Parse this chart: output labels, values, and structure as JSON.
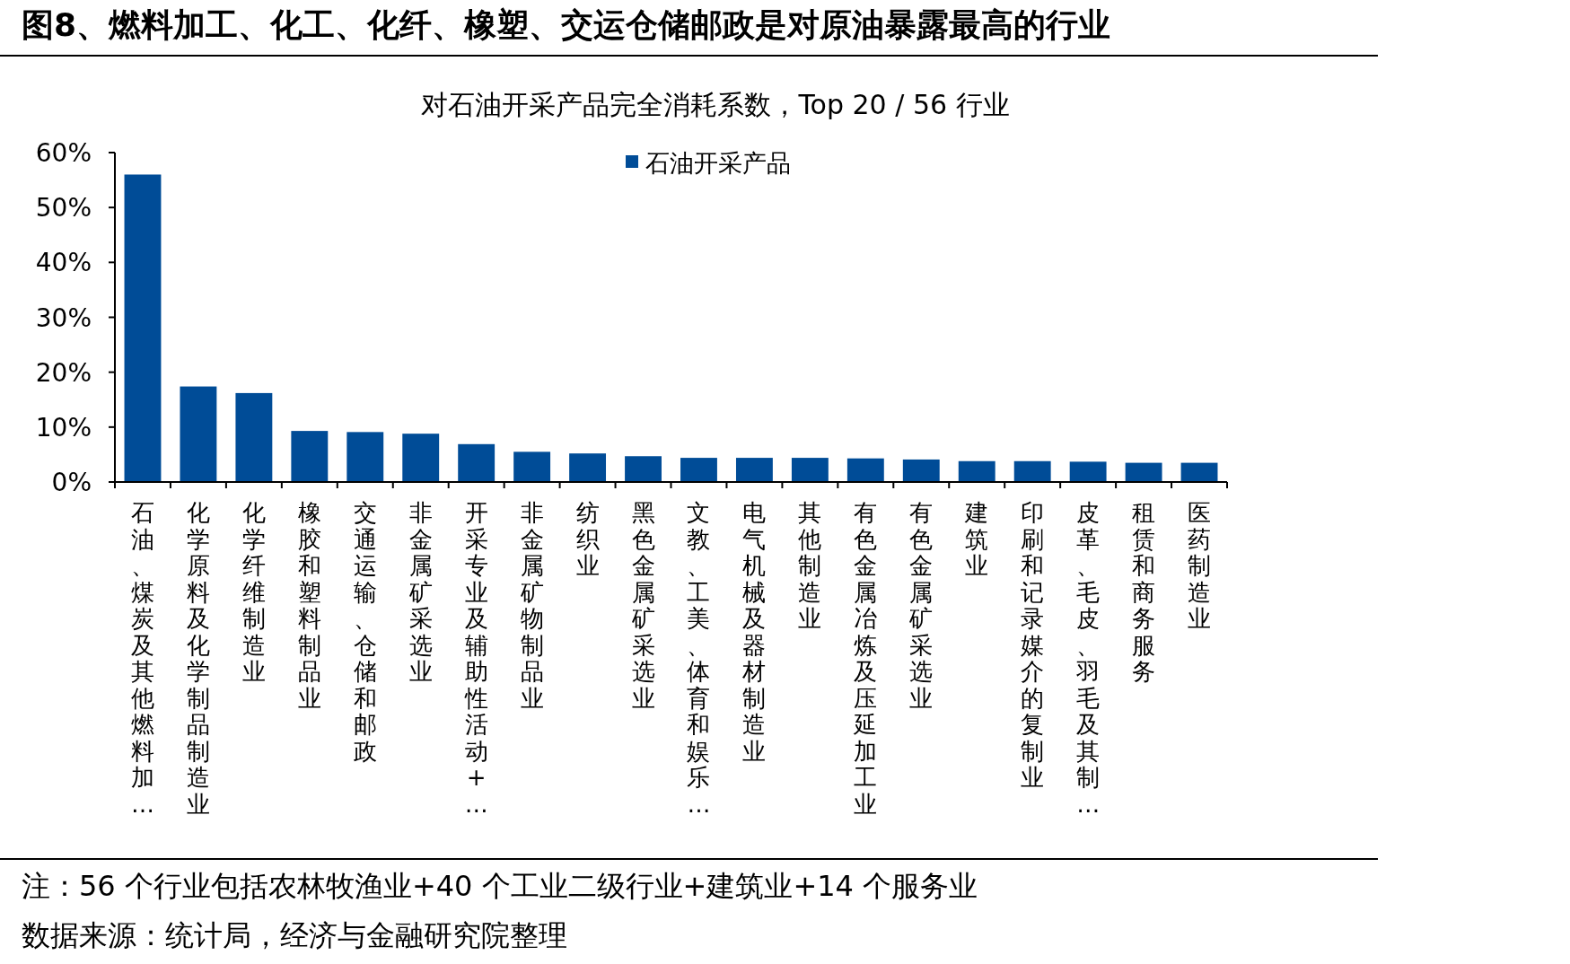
{
  "chart_data": {
    "type": "bar",
    "title": "图8、燃料加工、化工、化纤、橡塑、交运仓储邮政是对原油暴露最高的行业",
    "subtitle": "对石油开采产品完全消耗系数，Top 20 / 56 行业",
    "categories": [
      "石油、煤炭及其他燃料加…",
      "化学原料及化学制品制造业",
      "化学纤维制造业",
      "橡胶和塑料制品业",
      "交通运输、仓储和邮政",
      "非金属矿采选业",
      "开采专业及辅助性活动+…",
      "非金属矿物制品业",
      "纺织业",
      "黑色金属矿采选业",
      "文教、工美、体育和娱乐…",
      "电气机械及器材制造业",
      "其他制造业",
      "有色金属冶炼及压延加工业",
      "有色金属矿采选业",
      "建筑业",
      "印刷和记录媒介的复制业",
      "皮革、毛皮、羽毛及其制…",
      "租赁和商务服务",
      "医药制造业"
    ],
    "series": [
      {
        "name": "石油开采产品",
        "color": "#004c97",
        "values": [
          56.0,
          17.4,
          16.2,
          9.3,
          9.1,
          8.8,
          6.9,
          5.5,
          5.2,
          4.7,
          4.4,
          4.4,
          4.4,
          4.3,
          4.1,
          3.8,
          3.8,
          3.7,
          3.5,
          3.5
        ]
      }
    ],
    "ylim": [
      0,
      60
    ],
    "yticks": [
      {
        "value": 0,
        "label": "0%"
      },
      {
        "value": 10,
        "label": "10%"
      },
      {
        "value": 20,
        "label": "20%"
      },
      {
        "value": 30,
        "label": "30%"
      },
      {
        "value": 40,
        "label": "40%"
      },
      {
        "value": 50,
        "label": "50%"
      },
      {
        "value": 60,
        "label": "60%"
      }
    ],
    "legend": "top",
    "annotations": [
      "注：56 个行业包括农林牧渔业+40 个工业二级行业+建筑业+14 个服务业",
      "数据来源：统计局，经济与金融研究院整理"
    ]
  }
}
